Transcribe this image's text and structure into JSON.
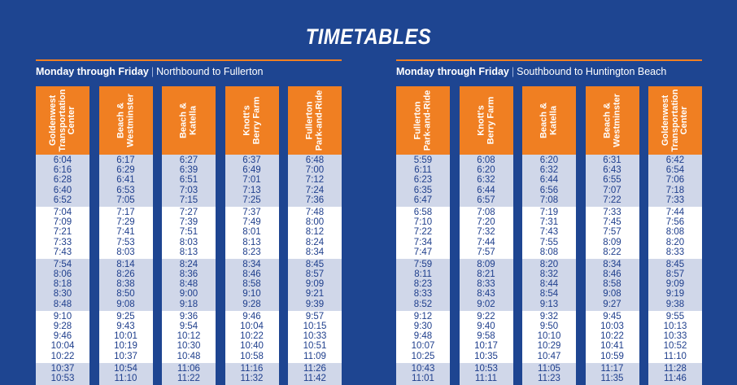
{
  "title": "TIMETABLES",
  "left": {
    "days": "Monday through Friday",
    "direction": "Northbound to Fullerton",
    "columns": [
      {
        "label": [
          "Goldenwest",
          "Transportation",
          "Center"
        ],
        "groups": [
          [
            "6:04",
            "6:16",
            "6:28",
            "6:40",
            "6:52"
          ],
          [
            "7:04",
            "7:09",
            "7:21",
            "7:33",
            "7:43"
          ],
          [
            "7:54",
            "8:06",
            "8:18",
            "8:30",
            "8:48"
          ],
          [
            "9:10",
            "9:28",
            "9:46",
            "10:04",
            "10:22"
          ],
          [
            "10:37",
            "10:53"
          ]
        ]
      },
      {
        "label": [
          "Beach &",
          "Westminster"
        ],
        "groups": [
          [
            "6:17",
            "6:29",
            "6:41",
            "6:53",
            "7:05"
          ],
          [
            "7:17",
            "7:29",
            "7:41",
            "7:53",
            "8:03"
          ],
          [
            "8:14",
            "8:26",
            "8:38",
            "8:50",
            "9:08"
          ],
          [
            "9:25",
            "9:43",
            "10:01",
            "10:19",
            "10:37"
          ],
          [
            "10:54",
            "11:10"
          ]
        ]
      },
      {
        "label": [
          "Beach &",
          "Katella"
        ],
        "groups": [
          [
            "6:27",
            "6:39",
            "6:51",
            "7:03",
            "7:15"
          ],
          [
            "7:27",
            "7:39",
            "7:51",
            "8:03",
            "8:13"
          ],
          [
            "8:24",
            "8:36",
            "8:48",
            "9:00",
            "9:18"
          ],
          [
            "9:36",
            "9:54",
            "10:12",
            "10:30",
            "10:48"
          ],
          [
            "11:06",
            "11:22"
          ]
        ]
      },
      {
        "label": [
          "Knott's",
          "Berry Farm"
        ],
        "groups": [
          [
            "6:37",
            "6:49",
            "7:01",
            "7:13",
            "7:25"
          ],
          [
            "7:37",
            "7:49",
            "8:01",
            "8:13",
            "8:23"
          ],
          [
            "8:34",
            "8:46",
            "8:58",
            "9:10",
            "9:28"
          ],
          [
            "9:46",
            "10:04",
            "10:22",
            "10:40",
            "10:58"
          ],
          [
            "11:16",
            "11:32"
          ]
        ]
      },
      {
        "label": [
          "Fullerton",
          "Park-and-Ride"
        ],
        "groups": [
          [
            "6:48",
            "7:00",
            "7:12",
            "7:24",
            "7:36"
          ],
          [
            "7:48",
            "8:00",
            "8:12",
            "8:24",
            "8:34"
          ],
          [
            "8:45",
            "8:57",
            "9:09",
            "9:21",
            "9:39"
          ],
          [
            "9:57",
            "10:15",
            "10:33",
            "10:51",
            "11:09"
          ],
          [
            "11:26",
            "11:42"
          ]
        ]
      }
    ]
  },
  "right": {
    "days": "Monday through Friday",
    "direction": "Southbound to Huntington Beach",
    "columns": [
      {
        "label": [
          "Fullerton",
          "Park-and-Ride"
        ],
        "groups": [
          [
            "5:59",
            "6:11",
            "6:23",
            "6:35",
            "6:47"
          ],
          [
            "6:58",
            "7:10",
            "7:22",
            "7:34",
            "7:47"
          ],
          [
            "7:59",
            "8:11",
            "8:23",
            "8:33",
            "8:52"
          ],
          [
            "9:12",
            "9:30",
            "9:48",
            "10:07",
            "10:25"
          ],
          [
            "10:43",
            "11:01"
          ]
        ]
      },
      {
        "label": [
          "Knott's",
          "Berry Farm"
        ],
        "groups": [
          [
            "6:08",
            "6:20",
            "6:32",
            "6:44",
            "6:57"
          ],
          [
            "7:08",
            "7:20",
            "7:32",
            "7:44",
            "7:57"
          ],
          [
            "8:09",
            "8:21",
            "8:33",
            "8:43",
            "9:02"
          ],
          [
            "9:22",
            "9:40",
            "9:58",
            "10:17",
            "10:35"
          ],
          [
            "10:53",
            "11:11"
          ]
        ]
      },
      {
        "label": [
          "Beach &",
          "Katella"
        ],
        "groups": [
          [
            "6:20",
            "6:32",
            "6:44",
            "6:56",
            "7:08"
          ],
          [
            "7:19",
            "7:31",
            "7:43",
            "7:55",
            "8:08"
          ],
          [
            "8:20",
            "8:32",
            "8:44",
            "8:54",
            "9:13"
          ],
          [
            "9:32",
            "9:50",
            "10:10",
            "10:29",
            "10:47"
          ],
          [
            "11:05",
            "11:23"
          ]
        ]
      },
      {
        "label": [
          "Beach &",
          "Westminster"
        ],
        "groups": [
          [
            "6:31",
            "6:43",
            "6:55",
            "7:07",
            "7:22"
          ],
          [
            "7:33",
            "7:45",
            "7:57",
            "8:09",
            "8:22"
          ],
          [
            "8:34",
            "8:46",
            "8:58",
            "9:08",
            "9:27"
          ],
          [
            "9:45",
            "10:03",
            "10:22",
            "10:41",
            "10:59"
          ],
          [
            "11:17",
            "11:35"
          ]
        ]
      },
      {
        "label": [
          "Goldenwest",
          "Transportation",
          "Center"
        ],
        "groups": [
          [
            "6:42",
            "6:54",
            "7:06",
            "7:18",
            "7:33"
          ],
          [
            "7:44",
            "7:56",
            "8:08",
            "8:20",
            "8:33"
          ],
          [
            "8:45",
            "8:57",
            "9:09",
            "9:19",
            "9:38"
          ],
          [
            "9:55",
            "10:13",
            "10:33",
            "10:52",
            "11:10"
          ],
          [
            "11:28",
            "11:46"
          ]
        ]
      }
    ]
  }
}
